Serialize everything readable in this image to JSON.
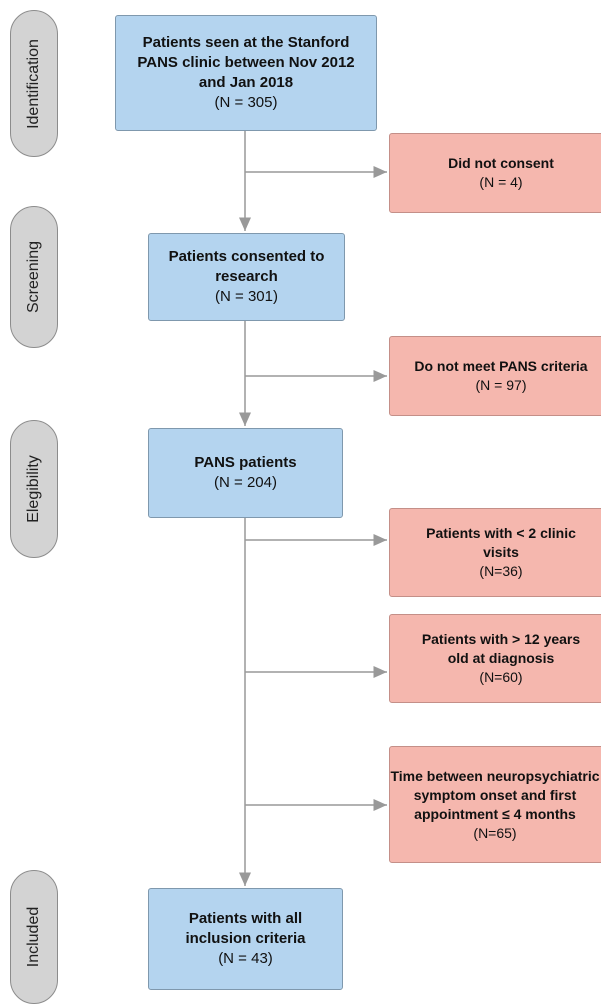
{
  "stages": [
    "Identification",
    "Screening",
    "Elegibility",
    "Included"
  ],
  "main_boxes": [
    {
      "title": "Patients seen at the Stanford PANS clinic between Nov 2012 and Jan 2018",
      "count": "(N = 305)"
    },
    {
      "title": "Patients consented to research",
      "count": "(N = 301)"
    },
    {
      "title": "PANS patients",
      "count": "(N = 204)"
    },
    {
      "title": "Patients with all inclusion criteria",
      "count": "(N = 43)"
    }
  ],
  "exclusions": [
    {
      "title": "Did not consent",
      "count": "(N = 4)"
    },
    {
      "title": "Do not meet PANS criteria",
      "count": "(N = 97)"
    },
    {
      "title": "Patients with < 2 clinic visits",
      "count": "(N=36)"
    },
    {
      "title": "Patients with > 12 years old at diagnosis",
      "count": "(N=60)"
    },
    {
      "title": "Time between neuropsychiatric symptom onset and first appointment ≤ 4 months",
      "count": "(N=65)"
    }
  ]
}
